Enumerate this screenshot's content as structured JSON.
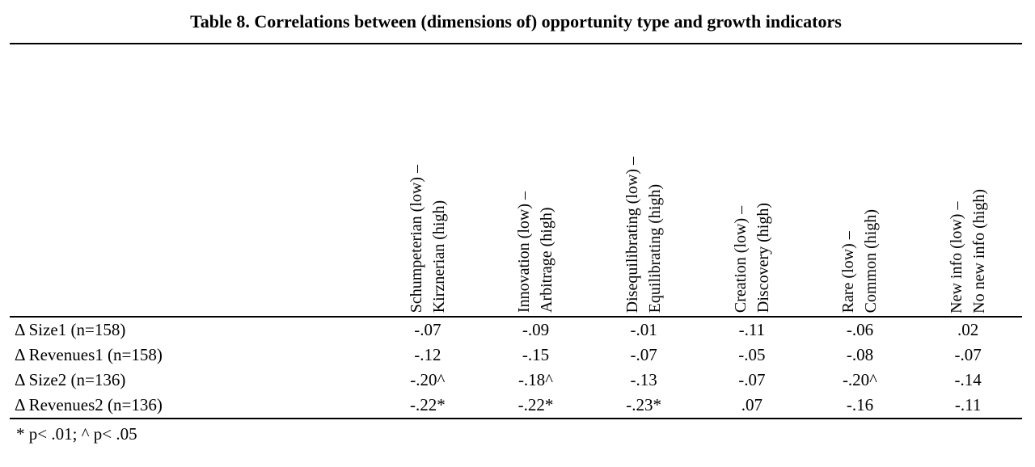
{
  "title": "Table 8. Correlations between (dimensions of) opportunity type and growth indicators",
  "table": {
    "column_headers": [
      {
        "line1": "Schumpeterian (low) –",
        "line2": "Kirznerian (high)"
      },
      {
        "line1": "Innovation (low) –",
        "line2": "Arbitrage (high)"
      },
      {
        "line1": "Disequilibrating (low) –",
        "line2": "Equilibrating (high)"
      },
      {
        "line1": "Creation (low) –",
        "line2": "Discovery (high)"
      },
      {
        "line1": "Rare (low) –",
        "line2": "Common (high)"
      },
      {
        "line1": "New info (low) –",
        "line2": "No new info (high)"
      }
    ],
    "rows": [
      {
        "label": "Δ Size1 (n=158)",
        "values": [
          "-.07",
          "-.09",
          "-.01",
          "-.11",
          "-.06",
          ".02"
        ]
      },
      {
        "label": "Δ Revenues1 (n=158)",
        "values": [
          "-.12",
          "-.15",
          "-.07",
          "-.05",
          "-.08",
          "-.07"
        ]
      },
      {
        "label": "Δ Size2 (n=136)",
        "values": [
          "-.20^",
          "-.18^",
          "-.13",
          "-.07",
          "-.20^",
          "-.14"
        ]
      },
      {
        "label": "Δ Revenues2 (n=136)",
        "values": [
          "-.22*",
          "-.22*",
          "-.23*",
          ".07",
          "-.16",
          "-.11"
        ]
      }
    ],
    "footnote": "* p< .01; ^ p< .05"
  }
}
